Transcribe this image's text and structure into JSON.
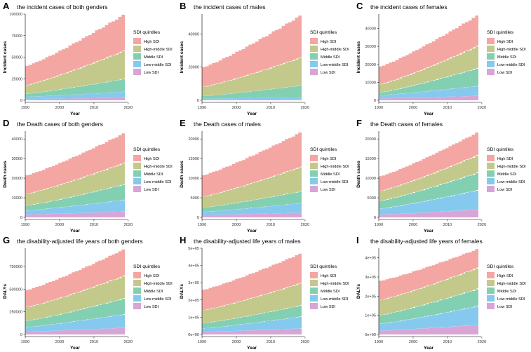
{
  "legend": {
    "title": "SDI quintiles",
    "items": [
      "High SDI",
      "High-middle SDI",
      "Middle SDI",
      "Low-middle SDI",
      "Low SDI"
    ],
    "colors": [
      "#f4a6a3",
      "#c3c98a",
      "#83cfb1",
      "#86c9ef",
      "#d7a6d6"
    ]
  },
  "chart_data": [
    {
      "letter": "A",
      "type": "area",
      "stacked": true,
      "title": "the incident cases of both genders",
      "xlabel": "Year",
      "ylabel": "Incident cases",
      "xlim": [
        1990,
        2019
      ],
      "ylim": [
        0,
        100000
      ],
      "xticks": [
        1990,
        2000,
        2010,
        2020
      ],
      "xtick_labels": [
        "1990",
        "2000",
        "2010",
        "2020"
      ],
      "yticks": [
        0,
        25000,
        50000,
        75000,
        100000
      ],
      "ytick_labels": [
        "0",
        "25000",
        "50000",
        "75000",
        "100000"
      ],
      "x": [
        1990,
        2019
      ],
      "series": [
        {
          "name": "Low SDI",
          "values": [
            1500,
            3000
          ]
        },
        {
          "name": "Low-middle SDI",
          "values": [
            2500,
            7000
          ]
        },
        {
          "name": "Middle SDI",
          "values": [
            3500,
            15000
          ]
        },
        {
          "name": "High-middle SDI",
          "values": [
            10000,
            33000
          ]
        },
        {
          "name": "High SDI",
          "values": [
            22500,
            43000
          ]
        }
      ]
    },
    {
      "letter": "B",
      "type": "area",
      "stacked": true,
      "title": "the incident cases of males",
      "xlabel": "Year",
      "ylabel": "Incident cases",
      "xlim": [
        1990,
        2019
      ],
      "ylim": [
        0,
        52000
      ],
      "xticks": [
        1990,
        2000,
        2010,
        2020
      ],
      "xtick_labels": [
        "1990",
        "2000",
        "2010",
        "2020"
      ],
      "yticks": [
        0,
        20000,
        40000
      ],
      "ytick_labels": [
        "0",
        "20000",
        "40000"
      ],
      "x": [
        1990,
        2019
      ],
      "series": [
        {
          "name": "Low SDI",
          "values": [
            300,
            500
          ]
        },
        {
          "name": "Low-middle SDI",
          "values": [
            700,
            1500
          ]
        },
        {
          "name": "Middle SDI",
          "values": [
            1500,
            7000
          ]
        },
        {
          "name": "High-middle SDI",
          "values": [
            5500,
            17000
          ]
        },
        {
          "name": "High SDI",
          "values": [
            12000,
            26000
          ]
        }
      ]
    },
    {
      "letter": "C",
      "type": "area",
      "stacked": true,
      "title": "the incident cases of females",
      "xlabel": "Year",
      "ylabel": "Incident cases",
      "xlim": [
        1990,
        2019
      ],
      "ylim": [
        0,
        48000
      ],
      "xticks": [
        1990,
        2000,
        2010,
        2020
      ],
      "xtick_labels": [
        "1990",
        "2000",
        "2010",
        "2020"
      ],
      "yticks": [
        0,
        10000,
        20000,
        30000,
        40000
      ],
      "ytick_labels": [
        "0",
        "10000",
        "20000",
        "30000",
        "40000"
      ],
      "x": [
        1990,
        2019
      ],
      "series": [
        {
          "name": "Low SDI",
          "values": [
            1000,
            2500
          ]
        },
        {
          "name": "Low-middle SDI",
          "values": [
            1800,
            5500
          ]
        },
        {
          "name": "Middle SDI",
          "values": [
            1500,
            10000
          ]
        },
        {
          "name": "High-middle SDI",
          "values": [
            4500,
            12500
          ]
        },
        {
          "name": "High SDI",
          "values": [
            10000,
            17500
          ]
        }
      ]
    },
    {
      "letter": "D",
      "type": "area",
      "stacked": true,
      "title": "the Death cases of both genders",
      "xlabel": "Year",
      "ylabel": "Death cases",
      "xlim": [
        1990,
        2019
      ],
      "ylim": [
        0,
        44000
      ],
      "xticks": [
        1990,
        2000,
        2010,
        2020
      ],
      "xtick_labels": [
        "1990",
        "2000",
        "2010",
        "2020"
      ],
      "yticks": [
        0,
        10000,
        20000,
        30000,
        40000
      ],
      "ytick_labels": [
        "0",
        "10000",
        "20000",
        "30000",
        "40000"
      ],
      "x": [
        1990,
        2019
      ],
      "series": [
        {
          "name": "Low SDI",
          "values": [
            1500,
            3000
          ]
        },
        {
          "name": "Low-middle SDI",
          "values": [
            2000,
            6000
          ]
        },
        {
          "name": "Middle SDI",
          "values": [
            2500,
            8000
          ]
        },
        {
          "name": "High-middle SDI",
          "values": [
            6000,
            11000
          ]
        },
        {
          "name": "High SDI",
          "values": [
            9500,
            15500
          ]
        }
      ]
    },
    {
      "letter": "E",
      "type": "area",
      "stacked": true,
      "title": "the Death cases of males",
      "xlabel": "Year",
      "ylabel": "Death cases",
      "xlim": [
        1990,
        2019
      ],
      "ylim": [
        0,
        22000
      ],
      "xticks": [
        1990,
        2000,
        2010,
        2020
      ],
      "xtick_labels": [
        "1990",
        "2000",
        "2010",
        "2020"
      ],
      "yticks": [
        0,
        5000,
        10000,
        15000,
        20000
      ],
      "ytick_labels": [
        "0",
        "5000",
        "10000",
        "15000",
        "20000"
      ],
      "x": [
        1990,
        2019
      ],
      "series": [
        {
          "name": "Low SDI",
          "values": [
            600,
            1200
          ]
        },
        {
          "name": "Low-middle SDI",
          "values": [
            800,
            2500
          ]
        },
        {
          "name": "Middle SDI",
          "values": [
            1100,
            3000
          ]
        },
        {
          "name": "High-middle SDI",
          "values": [
            2800,
            6300
          ]
        },
        {
          "name": "High SDI",
          "values": [
            5500,
            9000
          ]
        }
      ]
    },
    {
      "letter": "F",
      "type": "area",
      "stacked": true,
      "title": "the Death cases of females",
      "xlabel": "Year",
      "ylabel": "Death cases",
      "xlim": [
        1990,
        2019
      ],
      "ylim": [
        0,
        22000
      ],
      "xticks": [
        1990,
        2000,
        2010,
        2020
      ],
      "xtick_labels": [
        "1990",
        "2000",
        "2010",
        "2020"
      ],
      "yticks": [
        0,
        5000,
        10000,
        15000,
        20000
      ],
      "ytick_labels": [
        "0",
        "5000",
        "10000",
        "15000",
        "20000"
      ],
      "x": [
        1990,
        2019
      ],
      "series": [
        {
          "name": "Low SDI",
          "values": [
            700,
            2000
          ]
        },
        {
          "name": "Low-middle SDI",
          "values": [
            1500,
            5000
          ]
        },
        {
          "name": "Middle SDI",
          "values": [
            2000,
            4500
          ]
        },
        {
          "name": "High-middle SDI",
          "values": [
            2500,
            4500
          ]
        },
        {
          "name": "High SDI",
          "values": [
            3800,
            6000
          ]
        }
      ]
    },
    {
      "letter": "G",
      "type": "area",
      "stacked": true,
      "title": "the disability-adjusted life years of both genders",
      "xlabel": "Year",
      "ylabel": "DALYs",
      "xlim": [
        1990,
        2019
      ],
      "ylim": [
        0,
        950000
      ],
      "xticks": [
        1990,
        2000,
        2010,
        2020
      ],
      "xtick_labels": [
        "1990",
        "2000",
        "2010",
        "2020"
      ],
      "yticks": [
        0,
        250000,
        500000,
        750000
      ],
      "ytick_labels": [
        "0",
        "250000",
        "500000",
        "750000"
      ],
      "x": [
        1990,
        2019
      ],
      "series": [
        {
          "name": "Low SDI",
          "values": [
            30000,
            75000
          ]
        },
        {
          "name": "Low-middle SDI",
          "values": [
            50000,
            150000
          ]
        },
        {
          "name": "Middle SDI",
          "values": [
            70000,
            175000
          ]
        },
        {
          "name": "High-middle SDI",
          "values": [
            150000,
            250000
          ]
        },
        {
          "name": "High SDI",
          "values": [
            190000,
            300000
          ]
        }
      ]
    },
    {
      "letter": "H",
      "type": "area",
      "stacked": true,
      "title": "the disability-adjusted life years of males",
      "xlabel": "Year",
      "ylabel": "DALYs",
      "xlim": [
        1990,
        2019
      ],
      "ylim": [
        0,
        500000
      ],
      "xticks": [
        1990,
        2000,
        2010,
        2020
      ],
      "xtick_labels": [
        "1990",
        "2000",
        "2010",
        "2020"
      ],
      "yticks": [
        0,
        100000,
        200000,
        300000,
        400000,
        500000
      ],
      "ytick_labels": [
        "0e+00",
        "1e+05",
        "2e+05",
        "3e+05",
        "4e+05",
        "5e+05"
      ],
      "x": [
        1990,
        2019
      ],
      "series": [
        {
          "name": "Low SDI",
          "values": [
            15000,
            35000
          ]
        },
        {
          "name": "Low-middle SDI",
          "values": [
            20000,
            70000
          ]
        },
        {
          "name": "Middle SDI",
          "values": [
            30000,
            65000
          ]
        },
        {
          "name": "High-middle SDI",
          "values": [
            75000,
            130000
          ]
        },
        {
          "name": "High SDI",
          "values": [
            120000,
            175000
          ]
        }
      ]
    },
    {
      "letter": "I",
      "type": "area",
      "stacked": true,
      "title": "the disability-adjusted life years of females",
      "xlabel": "Year",
      "ylabel": "DALYs",
      "xlim": [
        1990,
        2019
      ],
      "ylim": [
        0,
        450000
      ],
      "xticks": [
        1990,
        2000,
        2010,
        2020
      ],
      "xtick_labels": [
        "1990",
        "2000",
        "2010",
        "2020"
      ],
      "yticks": [
        0,
        100000,
        200000,
        300000,
        400000
      ],
      "ytick_labels": [
        "0e+00",
        "1e+05",
        "2e+05",
        "3e+05",
        "4e+05"
      ],
      "x": [
        1990,
        2019
      ],
      "series": [
        {
          "name": "Low SDI",
          "values": [
            20000,
            50000
          ]
        },
        {
          "name": "Low-middle SDI",
          "values": [
            35000,
            100000
          ]
        },
        {
          "name": "Middle SDI",
          "values": [
            45000,
            90000
          ]
        },
        {
          "name": "High-middle SDI",
          "values": [
            80000,
            110000
          ]
        },
        {
          "name": "High SDI",
          "values": [
            100000,
            100000
          ]
        }
      ]
    }
  ]
}
